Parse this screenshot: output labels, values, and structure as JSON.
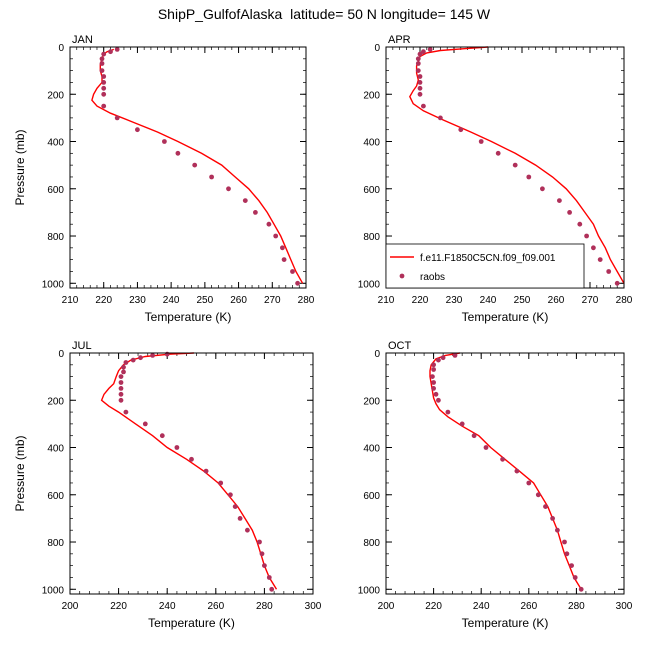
{
  "title": "ShipP_GulfofAlaska  latitude= 50 N longitude= 145 W",
  "colors": {
    "model": "#ff0000",
    "raobs": "#b0305a",
    "frame": "#000000"
  },
  "legend": {
    "model_label": "f.e11.F1850C5CN.f09_f09.001",
    "raobs_label": "raobs",
    "panel": "APR"
  },
  "chart_data": [
    {
      "type": "line",
      "panel": "JAN",
      "xlabel": "Temperature (K)",
      "ylabel": "Pressure (mb)",
      "xlim": [
        210,
        280
      ],
      "ylim": [
        1020,
        0
      ],
      "y_reversed": true,
      "xticks": [
        210,
        220,
        230,
        240,
        250,
        260,
        270,
        280
      ],
      "yticks": [
        0,
        200,
        400,
        600,
        800,
        1000
      ],
      "series": [
        {
          "name": "f.e11.F1850C5CN.f09_f09.001",
          "kind": "line",
          "points": [
            [
              223,
              10
            ],
            [
              221,
              20
            ],
            [
              220,
              30
            ],
            [
              219.5,
              50
            ],
            [
              219,
              75
            ],
            [
              219,
              100
            ],
            [
              219.5,
              125
            ],
            [
              219.5,
              150
            ],
            [
              218,
              175
            ],
            [
              217,
              200
            ],
            [
              216.5,
              225
            ],
            [
              218,
              250
            ],
            [
              222,
              280
            ],
            [
              229,
              320
            ],
            [
              236,
              360
            ],
            [
              242,
              400
            ],
            [
              249,
              450
            ],
            [
              255,
              500
            ],
            [
              259,
              550
            ],
            [
              263,
              600
            ],
            [
              266,
              650
            ],
            [
              268.5,
              700
            ],
            [
              270.5,
              750
            ],
            [
              272.5,
              800
            ],
            [
              274,
              850
            ],
            [
              275.5,
              900
            ],
            [
              277,
              950
            ],
            [
              279,
              1000
            ]
          ]
        },
        {
          "name": "raobs",
          "kind": "scatter",
          "points": [
            [
              224,
              10
            ],
            [
              222,
              20
            ],
            [
              220,
              30
            ],
            [
              219.5,
              50
            ],
            [
              219.5,
              70
            ],
            [
              219.5,
              100
            ],
            [
              220,
              125
            ],
            [
              220,
              150
            ],
            [
              220,
              175
            ],
            [
              220,
              200
            ],
            [
              220,
              250
            ],
            [
              224,
              300
            ],
            [
              230,
              350
            ],
            [
              238,
              400
            ],
            [
              242,
              450
            ],
            [
              247,
              500
            ],
            [
              252,
              550
            ],
            [
              257,
              600
            ],
            [
              262,
              650
            ],
            [
              265,
              700
            ],
            [
              269,
              750
            ],
            [
              271,
              800
            ],
            [
              273,
              850
            ],
            [
              273.5,
              900
            ],
            [
              276,
              950
            ],
            [
              277.5,
              1000
            ]
          ]
        }
      ]
    },
    {
      "type": "line",
      "panel": "APR",
      "xlabel": "Temperature (K)",
      "ylabel": "",
      "xlim": [
        210,
        280
      ],
      "ylim": [
        1020,
        0
      ],
      "y_reversed": true,
      "xticks": [
        210,
        220,
        230,
        240,
        250,
        260,
        270,
        280
      ],
      "yticks": [
        0,
        200,
        400,
        600,
        800,
        1000
      ],
      "series": [
        {
          "name": "f.e11.F1850C5CN.f09_f09.001",
          "kind": "line",
          "points": [
            [
              240,
              0
            ],
            [
              233,
              7
            ],
            [
              226,
              15
            ],
            [
              222,
              25
            ],
            [
              220,
              40
            ],
            [
              219.5,
              60
            ],
            [
              219,
              80
            ],
            [
              219,
              110
            ],
            [
              219.5,
              140
            ],
            [
              219,
              165
            ],
            [
              218,
              185
            ],
            [
              217,
              210
            ],
            [
              218,
              240
            ],
            [
              221,
              270
            ],
            [
              227,
              310
            ],
            [
              235,
              360
            ],
            [
              241,
              400
            ],
            [
              248,
              450
            ],
            [
              254,
              500
            ],
            [
              259,
              550
            ],
            [
              263,
              600
            ],
            [
              266,
              650
            ],
            [
              268.5,
              700
            ],
            [
              271,
              750
            ],
            [
              272.5,
              800
            ],
            [
              274.5,
              850
            ],
            [
              276,
              900
            ],
            [
              278,
              950
            ],
            [
              280,
              1000
            ]
          ]
        },
        {
          "name": "raobs",
          "kind": "scatter",
          "points": [
            [
              223,
              10
            ],
            [
              221,
              20
            ],
            [
              220,
              30
            ],
            [
              219.5,
              50
            ],
            [
              219.5,
              70
            ],
            [
              219.5,
              100
            ],
            [
              220,
              125
            ],
            [
              220,
              150
            ],
            [
              220,
              175
            ],
            [
              220,
              200
            ],
            [
              221,
              250
            ],
            [
              226,
              300
            ],
            [
              232,
              350
            ],
            [
              238,
              400
            ],
            [
              243,
              450
            ],
            [
              248,
              500
            ],
            [
              252,
              550
            ],
            [
              256,
              600
            ],
            [
              261,
              650
            ],
            [
              264,
              700
            ],
            [
              267,
              750
            ],
            [
              269,
              800
            ],
            [
              271,
              850
            ],
            [
              273,
              900
            ],
            [
              275.5,
              950
            ],
            [
              278,
              1000
            ]
          ]
        }
      ]
    },
    {
      "type": "line",
      "panel": "JUL",
      "xlabel": "Temperature (K)",
      "ylabel": "Pressure (mb)",
      "xlim": [
        200,
        300
      ],
      "ylim": [
        1020,
        0
      ],
      "y_reversed": true,
      "xticks": [
        200,
        220,
        240,
        260,
        280,
        300
      ],
      "yticks": [
        0,
        200,
        400,
        600,
        800,
        1000
      ],
      "series": [
        {
          "name": "f.e11.F1850C5CN.f09_f09.001",
          "kind": "line",
          "points": [
            [
              251,
              0
            ],
            [
              241,
              5
            ],
            [
              231,
              15
            ],
            [
              225,
              30
            ],
            [
              222,
              50
            ],
            [
              220,
              75
            ],
            [
              219,
              100
            ],
            [
              218,
              130
            ],
            [
              216,
              150
            ],
            [
              214,
              175
            ],
            [
              213,
              200
            ],
            [
              216,
              225
            ],
            [
              220,
              250
            ],
            [
              227,
              300
            ],
            [
              234,
              350
            ],
            [
              240,
              400
            ],
            [
              248,
              450
            ],
            [
              255,
              500
            ],
            [
              261,
              550
            ],
            [
              265,
              600
            ],
            [
              269,
              650
            ],
            [
              272,
              700
            ],
            [
              275,
              750
            ],
            [
              277,
              800
            ],
            [
              278.5,
              850
            ],
            [
              280,
              900
            ],
            [
              282,
              950
            ],
            [
              285,
              1000
            ]
          ]
        },
        {
          "name": "raobs",
          "kind": "scatter",
          "points": [
            [
              240,
              5
            ],
            [
              234,
              10
            ],
            [
              229,
              20
            ],
            [
              226,
              30
            ],
            [
              223,
              40
            ],
            [
              222,
              60
            ],
            [
              222,
              80
            ],
            [
              221,
              100
            ],
            [
              221,
              125
            ],
            [
              221,
              150
            ],
            [
              221,
              175
            ],
            [
              221,
              200
            ],
            [
              223,
              250
            ],
            [
              231,
              300
            ],
            [
              238,
              350
            ],
            [
              244,
              400
            ],
            [
              250,
              450
            ],
            [
              256,
              500
            ],
            [
              262,
              550
            ],
            [
              266,
              600
            ],
            [
              268,
              650
            ],
            [
              270,
              700
            ],
            [
              273,
              750
            ],
            [
              278,
              800
            ],
            [
              279,
              850
            ],
            [
              280,
              900
            ],
            [
              282,
              950
            ],
            [
              283,
              1000
            ]
          ]
        }
      ]
    },
    {
      "type": "line",
      "panel": "OCT",
      "xlabel": "Temperature (K)",
      "ylabel": "",
      "xlim": [
        200,
        300
      ],
      "ylim": [
        1020,
        0
      ],
      "y_reversed": true,
      "xticks": [
        200,
        220,
        240,
        260,
        280,
        300
      ],
      "yticks": [
        0,
        200,
        400,
        600,
        800,
        1000
      ],
      "series": [
        {
          "name": "f.e11.F1850C5CN.f09_f09.001",
          "kind": "line",
          "points": [
            [
              231,
              0
            ],
            [
              225,
              10
            ],
            [
              221,
              25
            ],
            [
              219,
              50
            ],
            [
              218.5,
              75
            ],
            [
              218.5,
              100
            ],
            [
              219,
              130
            ],
            [
              219.5,
              160
            ],
            [
              220,
              190
            ],
            [
              221,
              215
            ],
            [
              222.5,
              240
            ],
            [
              226,
              270
            ],
            [
              232,
              310
            ],
            [
              239,
              350
            ],
            [
              244,
              400
            ],
            [
              250,
              450
            ],
            [
              256,
              500
            ],
            [
              262,
              550
            ],
            [
              265,
              600
            ],
            [
              268,
              650
            ],
            [
              270,
              700
            ],
            [
              272,
              750
            ],
            [
              273.5,
              800
            ],
            [
              275,
              850
            ],
            [
              277,
              900
            ],
            [
              279,
              950
            ],
            [
              282,
              1000
            ]
          ]
        },
        {
          "name": "raobs",
          "kind": "scatter",
          "points": [
            [
              229,
              10
            ],
            [
              224,
              20
            ],
            [
              222,
              30
            ],
            [
              220,
              50
            ],
            [
              220,
              70
            ],
            [
              219.5,
              100
            ],
            [
              220,
              125
            ],
            [
              220,
              150
            ],
            [
              221,
              175
            ],
            [
              222,
              200
            ],
            [
              226,
              250
            ],
            [
              232,
              300
            ],
            [
              237,
              350
            ],
            [
              242,
              400
            ],
            [
              249,
              450
            ],
            [
              255,
              500
            ],
            [
              260,
              550
            ],
            [
              264,
              600
            ],
            [
              267,
              650
            ],
            [
              270,
              700
            ],
            [
              272,
              750
            ],
            [
              275,
              800
            ],
            [
              276,
              850
            ],
            [
              278,
              900
            ],
            [
              279.5,
              950
            ],
            [
              282,
              1000
            ]
          ]
        }
      ]
    }
  ]
}
